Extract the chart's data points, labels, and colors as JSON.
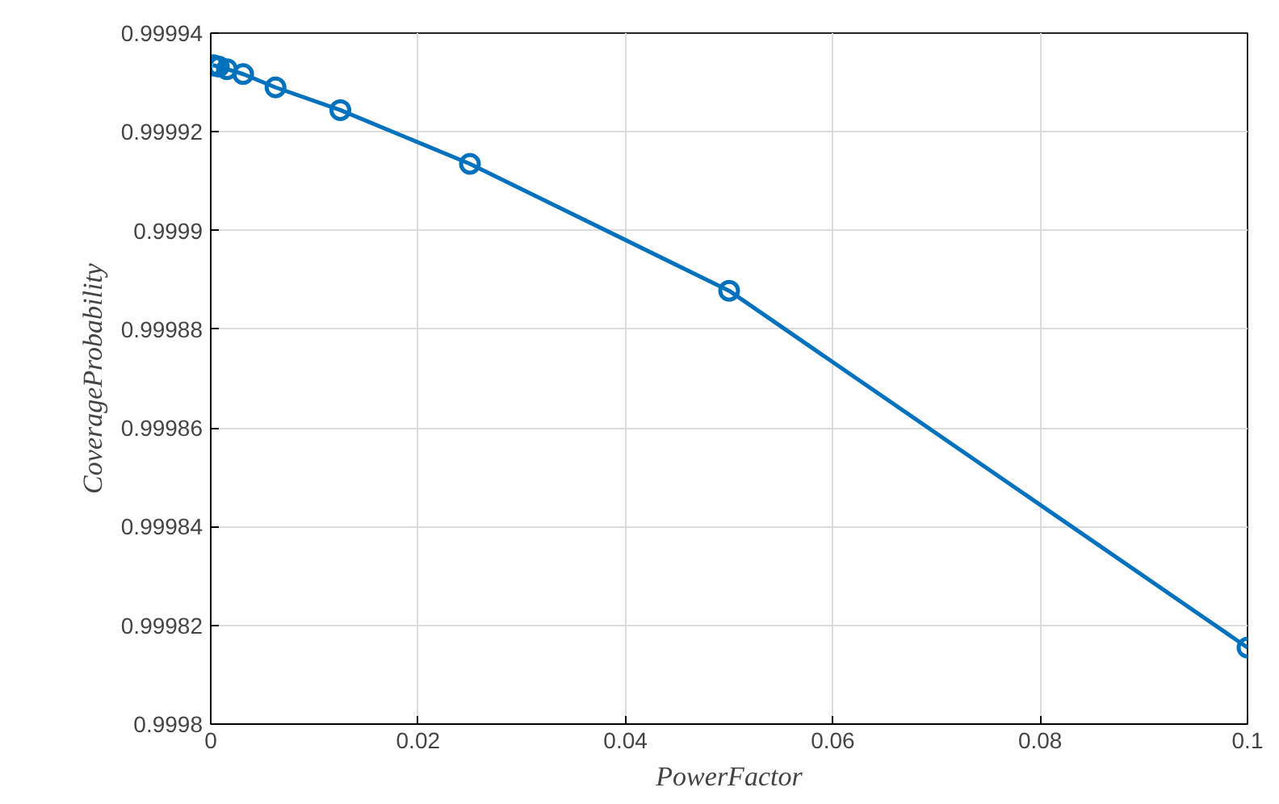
{
  "chart_data": {
    "type": "line",
    "xlabel": "PowerFactor",
    "ylabel": "CoverageProbability",
    "series": [
      {
        "color": "#0072bd",
        "x": [
          0.1,
          0.05,
          0.025,
          0.0125,
          0.00625,
          0.003125,
          0.0015625,
          0.00078125,
          0.000390625,
          0.0001953125
        ],
        "values": [
          0.9998155,
          0.9998878,
          0.9999135,
          0.9999244,
          0.999929,
          0.9999317,
          0.9999327,
          0.9999332,
          0.9999334,
          0.9999335
        ]
      }
    ],
    "xlim": [
      0,
      0.1
    ],
    "xticks": [
      0,
      0.02,
      0.04,
      0.06,
      0.08,
      0.1
    ],
    "ylim": [
      0.9998,
      0.99994
    ],
    "yticks": [
      0.9998,
      0.99982,
      0.99984,
      0.99986,
      0.99988,
      0.9999,
      0.99992,
      0.99994
    ],
    "grid": true,
    "marker": "circle",
    "line_style": "solid"
  }
}
